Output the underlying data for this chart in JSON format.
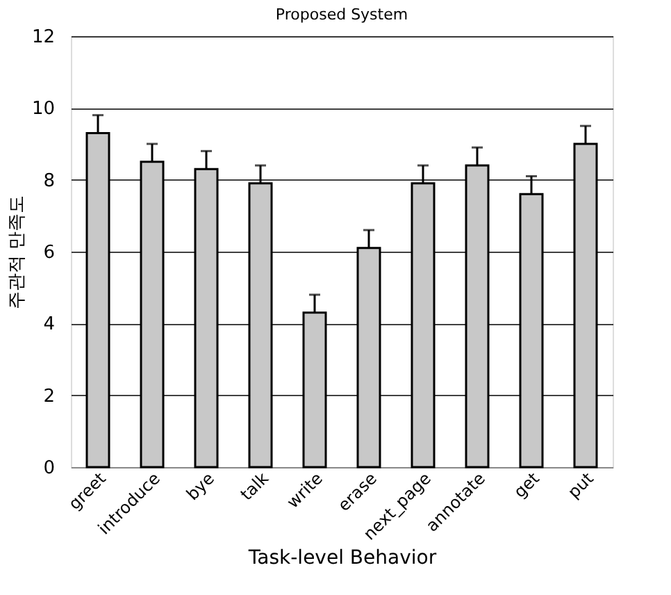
{
  "chart_data": {
    "type": "bar",
    "title": "Proposed System",
    "xlabel": "Task-level Behavior",
    "ylabel": "주관적 만족도",
    "categories": [
      "greet",
      "introduce",
      "bye",
      "talk",
      "write",
      "erase",
      "next_page",
      "annotate",
      "get",
      "put"
    ],
    "values": [
      9.3,
      8.5,
      8.3,
      7.9,
      4.3,
      6.1,
      7.9,
      8.4,
      7.6,
      9.0
    ],
    "errors": [
      [
        9.3,
        9.8
      ],
      [
        8.5,
        9.0
      ],
      [
        8.3,
        8.8
      ],
      [
        7.9,
        8.4
      ],
      [
        4.3,
        4.8
      ],
      [
        6.1,
        6.6
      ],
      [
        7.9,
        8.4
      ],
      [
        8.4,
        8.9
      ],
      [
        7.6,
        8.1
      ],
      [
        9.0,
        9.5
      ]
    ],
    "color": "#c8c8c8",
    "ylim": [
      0,
      12
    ],
    "yticks": [
      0,
      2,
      4,
      6,
      8,
      10,
      12
    ],
    "grid": "y"
  }
}
